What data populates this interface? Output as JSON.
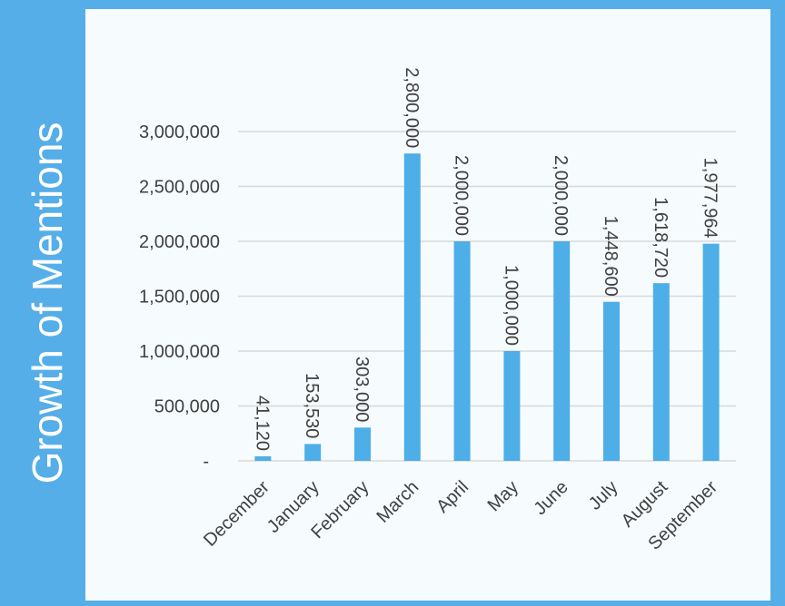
{
  "title": "Growth of Mentions",
  "colors": {
    "bar": "#4daee8",
    "band": "#55aee8",
    "plot_bg": "#f6fbfe",
    "grid": "#d9d9d9"
  },
  "chart_data": {
    "type": "bar",
    "title": "Growth of Mentions",
    "xlabel": "",
    "ylabel": "",
    "categories": [
      "December",
      "January",
      "February",
      "March",
      "April",
      "May",
      "June",
      "July",
      "August",
      "September"
    ],
    "values": [
      41120,
      153530,
      303000,
      2800000,
      2000000,
      1000000,
      2000000,
      1448600,
      1618720,
      1977964
    ],
    "data_labels": [
      "41,120",
      "153,530",
      "303,000",
      "2,800,000",
      "2,000,000",
      "1,000,000",
      "2,000,000",
      "1,448,600",
      "1,618,720",
      "1,977,964"
    ],
    "yticks": [
      0,
      500000,
      1000000,
      1500000,
      2000000,
      2500000,
      3000000
    ],
    "ytick_labels": [
      "-",
      "500,000",
      "1,000,000",
      "1,500,000",
      "2,000,000",
      "2,500,000",
      "3,000,000"
    ],
    "ylim": [
      0,
      3000000
    ],
    "grid": true,
    "legend": "none"
  }
}
